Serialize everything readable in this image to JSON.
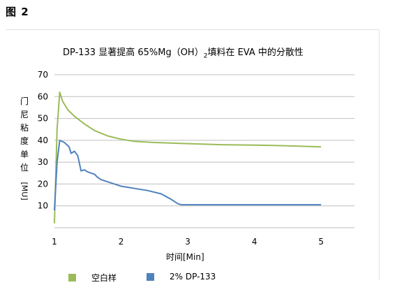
{
  "figure_label": "图 2",
  "chart_data": {
    "type": "line",
    "title_parts": {
      "main": "DP-133 显著提高 65%Mg（OH）",
      "subscript": "2",
      "tail": "填料在 EVA 中的分散性"
    },
    "ylabel": "门尼粘度单位[MU]",
    "xlabel": "时间[Min]",
    "ylim": [
      0,
      70
    ],
    "y_ticks": [
      10,
      20,
      30,
      40,
      50,
      60,
      70
    ],
    "xlim": [
      1,
      5.5
    ],
    "x_ticks": [
      1,
      2,
      3,
      4,
      5
    ],
    "grid": "horizontal",
    "legend_position": "bottom",
    "series": [
      {
        "name": "空白样",
        "color": "#9bbb59",
        "points": [
          [
            1.0,
            2
          ],
          [
            1.04,
            45
          ],
          [
            1.08,
            62
          ],
          [
            1.12,
            58
          ],
          [
            1.2,
            54
          ],
          [
            1.3,
            51
          ],
          [
            1.45,
            47.5
          ],
          [
            1.6,
            44.5
          ],
          [
            1.8,
            42
          ],
          [
            2.0,
            40.5
          ],
          [
            2.2,
            39.5
          ],
          [
            2.5,
            39
          ],
          [
            3.0,
            38.5
          ],
          [
            3.5,
            38
          ],
          [
            4.0,
            37.8
          ],
          [
            4.5,
            37.5
          ],
          [
            5.0,
            37
          ]
        ]
      },
      {
        "name": "2% DP-133",
        "color": "#4f81bd",
        "points": [
          [
            1.0,
            8
          ],
          [
            1.04,
            30
          ],
          [
            1.08,
            40
          ],
          [
            1.15,
            39
          ],
          [
            1.22,
            37
          ],
          [
            1.25,
            34
          ],
          [
            1.3,
            35
          ],
          [
            1.35,
            33
          ],
          [
            1.4,
            26
          ],
          [
            1.45,
            26.5
          ],
          [
            1.5,
            25.5
          ],
          [
            1.6,
            24.5
          ],
          [
            1.65,
            23
          ],
          [
            1.7,
            22
          ],
          [
            1.8,
            21
          ],
          [
            1.9,
            20
          ],
          [
            2.0,
            19
          ],
          [
            2.1,
            18.5
          ],
          [
            2.2,
            18
          ],
          [
            2.4,
            17
          ],
          [
            2.6,
            15.5
          ],
          [
            2.75,
            13
          ],
          [
            2.85,
            11
          ],
          [
            2.9,
            10.5
          ],
          [
            3.5,
            10.5
          ],
          [
            4.0,
            10.5
          ],
          [
            4.5,
            10.5
          ],
          [
            5.0,
            10.5
          ]
        ]
      }
    ]
  }
}
